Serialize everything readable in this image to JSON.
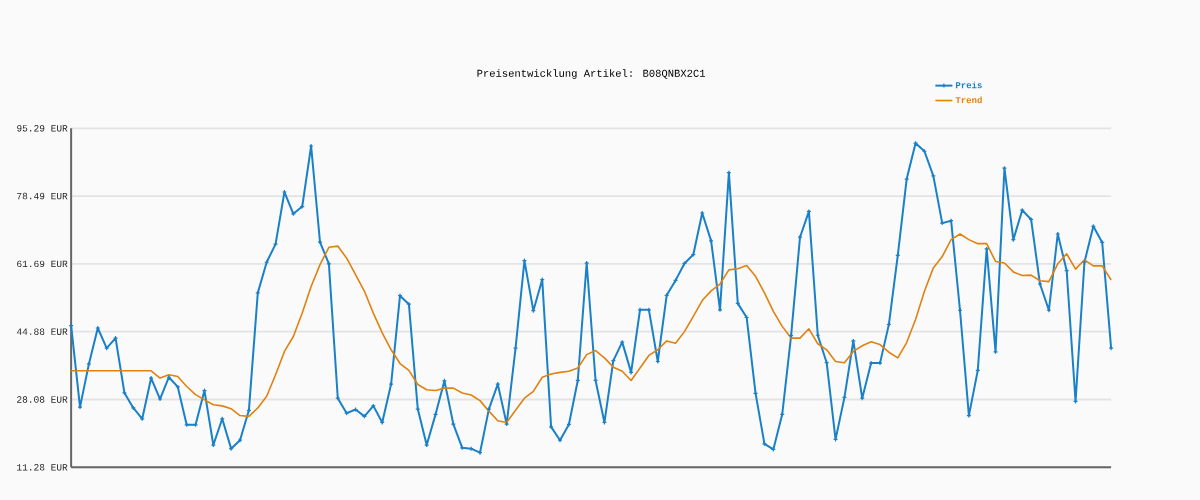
{
  "chart_data": {
    "type": "line",
    "title": "Preisentwicklung Artikel: B08QNBX2C1",
    "categories": [
      null,
      null,
      null,
      null,
      null,
      null,
      null,
      null,
      null,
      null,
      null,
      null,
      null,
      null,
      null,
      null,
      null,
      null,
      null,
      null,
      null,
      null,
      null,
      null,
      null,
      null,
      null,
      null,
      null,
      null,
      null,
      null,
      null,
      null,
      null,
      null,
      null,
      null,
      null,
      null,
      null,
      null,
      null,
      null,
      null,
      null,
      null,
      null,
      null,
      null,
      null,
      null,
      null,
      null,
      null,
      null,
      null,
      null,
      null,
      null,
      null,
      null,
      null,
      null,
      null,
      null,
      null,
      null,
      null,
      null,
      null,
      null,
      null,
      null,
      null,
      null,
      null,
      null,
      null,
      null,
      null,
      null,
      null,
      null,
      null,
      null,
      null,
      null,
      null,
      null,
      null,
      null,
      null,
      null,
      null,
      null,
      null,
      null,
      null,
      null,
      null,
      null,
      null,
      null,
      null,
      null,
      null,
      null,
      null,
      null,
      null,
      null,
      null,
      null,
      null,
      null,
      null,
      null
    ],
    "series": [
      {
        "name": "Preis",
        "color": "#1a80c8",
        "marker": "cross",
        "values": [
          46.4,
          26.2,
          36.9,
          45.8,
          40.8,
          43.3,
          29.7,
          26.0,
          23.3,
          33.4,
          28.2,
          33.6,
          31.2,
          21.8,
          21.8,
          30.3,
          16.8,
          23.3,
          15.9,
          18.0,
          25.4,
          54.5,
          62.1,
          66.6,
          79.5,
          74.1,
          75.9,
          90.9,
          67.1,
          61.7,
          28.4,
          24.7,
          25.6,
          23.9,
          26.5,
          22.4,
          31.9,
          53.8,
          51.7,
          25.7,
          16.8,
          24.4,
          32.7,
          22.0,
          16.1,
          15.9,
          14.9,
          25.7,
          31.9,
          22.0,
          40.8,
          62.5,
          50.1,
          57.8,
          21.3,
          18.0,
          21.9,
          32.8,
          61.9,
          32.8,
          22.4,
          37.7,
          42.3,
          34.8,
          50.3,
          50.3,
          37.5,
          53.9,
          57.6,
          61.8,
          64.0,
          74.3,
          67.4,
          50.3,
          84.3,
          51.9,
          48.4,
          29.6,
          17.1,
          15.7,
          24.4,
          43.9,
          68.3,
          74.7,
          44.0,
          37.2,
          18.2,
          28.6,
          42.6,
          28.4,
          37.1,
          37.1,
          46.7,
          63.8,
          82.7,
          91.6,
          89.6,
          83.5,
          71.8,
          72.4,
          50.2,
          24.1,
          35.3,
          65.4,
          39.9,
          85.4,
          67.7,
          75.0,
          72.7,
          56.7,
          50.2,
          69.1,
          60.0,
          27.6,
          62.1,
          71.0,
          67.0,
          40.8
        ]
      },
      {
        "name": "Trend",
        "color": "#e0820f",
        "marker": "none",
        "values": [
          35.2,
          35.2,
          35.2,
          35.2,
          35.2,
          35.2,
          35.2,
          35.2,
          35.2,
          35.2,
          33.4,
          34.2,
          33.8,
          31.3,
          29.3,
          28.0,
          26.8,
          26.5,
          25.8,
          24.1,
          23.9,
          26.0,
          28.9,
          34.2,
          40.0,
          43.7,
          49.5,
          56.1,
          61.5,
          65.8,
          66.1,
          63.1,
          59.0,
          54.9,
          49.5,
          44.6,
          40.4,
          37.0,
          35.3,
          31.8,
          30.5,
          30.3,
          30.9,
          30.9,
          29.7,
          29.2,
          27.8,
          25.2,
          22.8,
          22.4,
          25.4,
          28.4,
          30.1,
          33.6,
          34.4,
          34.8,
          35.1,
          35.9,
          39.2,
          40.2,
          38.4,
          36.1,
          35.1,
          32.8,
          35.9,
          39.0,
          40.4,
          42.6,
          42.0,
          44.9,
          48.7,
          52.6,
          55.0,
          56.7,
          60.2,
          60.5,
          61.3,
          58.6,
          54.5,
          49.9,
          46.2,
          43.3,
          43.3,
          45.6,
          41.9,
          40.4,
          37.5,
          37.2,
          40.0,
          41.4,
          42.4,
          41.7,
          39.8,
          38.4,
          42.2,
          47.9,
          54.9,
          60.7,
          63.5,
          67.7,
          69.1,
          67.7,
          66.7,
          66.7,
          62.3,
          61.9,
          59.7,
          58.8,
          58.9,
          57.5,
          57.3,
          61.7,
          64.2,
          60.4,
          62.7,
          61.2,
          61.2,
          57.7
        ]
      }
    ],
    "ylim": [
      11.28,
      95.29
    ],
    "yticks": [
      {
        "value": 11.28,
        "label": "11.28 EUR"
      },
      {
        "value": 28.08,
        "label": "28.08 EUR"
      },
      {
        "value": 44.88,
        "label": "44.88 EUR"
      },
      {
        "value": 61.69,
        "label": "61.69 EUR"
      },
      {
        "value": 78.49,
        "label": "78.49 EUR"
      },
      {
        "value": 95.29,
        "label": "95.29 EUR"
      }
    ],
    "grid": "y",
    "legend": "top right"
  }
}
